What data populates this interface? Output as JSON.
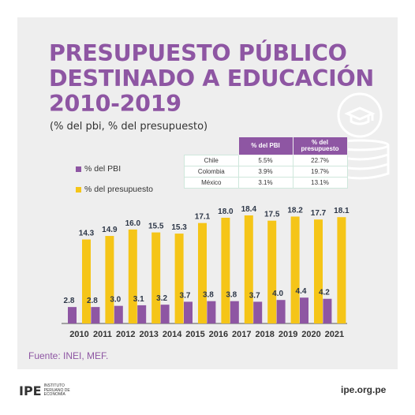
{
  "title": {
    "line1": "PRESUPUESTO PÚBLICO",
    "line2": "DESTINADO A EDUCACIÓN",
    "line3": "2010-2019"
  },
  "subtitle": "(% del pbi, % del presupuesto)",
  "legend": [
    {
      "label": "% del PBI",
      "color": "#8e56a3"
    },
    {
      "label": "% del presupuesto",
      "color": "#f5c518"
    }
  ],
  "table": {
    "headers": [
      "",
      "% del PBI",
      "% del presupuesto"
    ],
    "rows": [
      [
        "Chile",
        "5.5%",
        "22.7%"
      ],
      [
        "Colombia",
        "3.9%",
        "19.7%"
      ],
      [
        "México",
        "3.1%",
        "13.1%"
      ]
    ]
  },
  "chart_data": {
    "type": "bar",
    "categories": [
      "2010",
      "2011",
      "2012",
      "2013",
      "2014",
      "2015",
      "2016",
      "2017",
      "2018",
      "2019",
      "2020",
      "2021"
    ],
    "series": [
      {
        "name": "% del PBI",
        "color": "#8e56a3",
        "values": [
          2.8,
          2.8,
          3.0,
          3.1,
          3.2,
          3.7,
          3.8,
          3.8,
          3.7,
          4.0,
          4.4,
          4.2
        ]
      },
      {
        "name": "% del presupuesto",
        "color": "#f5c518",
        "values": [
          14.3,
          14.9,
          16.0,
          15.5,
          15.3,
          17.1,
          18.0,
          18.4,
          17.5,
          18.2,
          17.7,
          18.1
        ]
      }
    ],
    "ylim": [
      0,
      18.4
    ],
    "grid": false,
    "legend_position": "top-left"
  },
  "source": "Fuente: INEI, MEF.",
  "footer": {
    "logo": "IPE",
    "logo_text": "Instituto Peruano de Economía",
    "site": "ipe.org.pe"
  }
}
